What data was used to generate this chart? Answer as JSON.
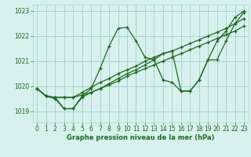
{
  "title": "Graphe pression niveau de la mer (hPa)",
  "background_color": "#d8f0ee",
  "grid_color": "#aad4ce",
  "line_color": "#1a6b1a",
  "xlim": [
    -0.5,
    23.5
  ],
  "ylim": [
    1018.55,
    1023.25
  ],
  "yticks": [
    1019,
    1020,
    1021,
    1022,
    1023
  ],
  "xticks": [
    0,
    1,
    2,
    3,
    4,
    5,
    6,
    7,
    8,
    9,
    10,
    11,
    12,
    13,
    14,
    15,
    16,
    17,
    18,
    19,
    20,
    21,
    22,
    23
  ],
  "series": [
    {
      "x": [
        0,
        1,
        2,
        3,
        4,
        5,
        6,
        7,
        8,
        9,
        10,
        11,
        12,
        13,
        14,
        15,
        16,
        17,
        18,
        19,
        20,
        21,
        22,
        23
      ],
      "y": [
        1019.9,
        1019.6,
        1019.5,
        1019.1,
        1019.1,
        1019.6,
        1019.9,
        1020.7,
        1021.6,
        1022.3,
        1022.35,
        1021.8,
        1021.15,
        1021.05,
        1020.25,
        1020.15,
        1019.8,
        1019.8,
        1020.25,
        1021.05,
        1021.8,
        1022.2,
        1022.75,
        1023.0
      ]
    },
    {
      "x": [
        0,
        1,
        2,
        3,
        4,
        5,
        6,
        7,
        8,
        9,
        10,
        11,
        12,
        13,
        14,
        15,
        16,
        17,
        18,
        19,
        20,
        21,
        22,
        23
      ],
      "y": [
        1019.9,
        1019.6,
        1019.55,
        1019.55,
        1019.55,
        1019.65,
        1019.75,
        1019.9,
        1020.05,
        1020.2,
        1020.4,
        1020.55,
        1020.7,
        1020.85,
        1021.0,
        1021.15,
        1021.3,
        1021.45,
        1021.6,
        1021.75,
        1021.9,
        1022.05,
        1022.2,
        1022.4
      ]
    },
    {
      "x": [
        0,
        1,
        2,
        3,
        4,
        5,
        6,
        7,
        8,
        9,
        10,
        11,
        12,
        13,
        14,
        15,
        16,
        17,
        18,
        19,
        20,
        21,
        22,
        23
      ],
      "y": [
        1019.9,
        1019.6,
        1019.55,
        1019.55,
        1019.55,
        1019.75,
        1019.95,
        1020.15,
        1020.3,
        1020.5,
        1020.65,
        1020.8,
        1021.0,
        1021.15,
        1021.3,
        1021.4,
        1021.55,
        1021.7,
        1021.85,
        1022.0,
        1022.15,
        1022.3,
        1022.5,
        1022.7
      ]
    },
    {
      "x": [
        0,
        1,
        2,
        3,
        4,
        5,
        6,
        7,
        8,
        9,
        10,
        11,
        12,
        13,
        14,
        15,
        16,
        17,
        18,
        19,
        20,
        21,
        22,
        23
      ],
      "y": [
        1019.9,
        1019.6,
        1019.55,
        1019.1,
        1019.1,
        1019.55,
        1019.75,
        1019.9,
        1020.1,
        1020.3,
        1020.5,
        1020.65,
        1020.85,
        1021.05,
        1021.3,
        1021.4,
        1019.8,
        1019.8,
        1020.25,
        1021.05,
        1021.05,
        1021.8,
        1022.5,
        1022.95
      ]
    }
  ]
}
